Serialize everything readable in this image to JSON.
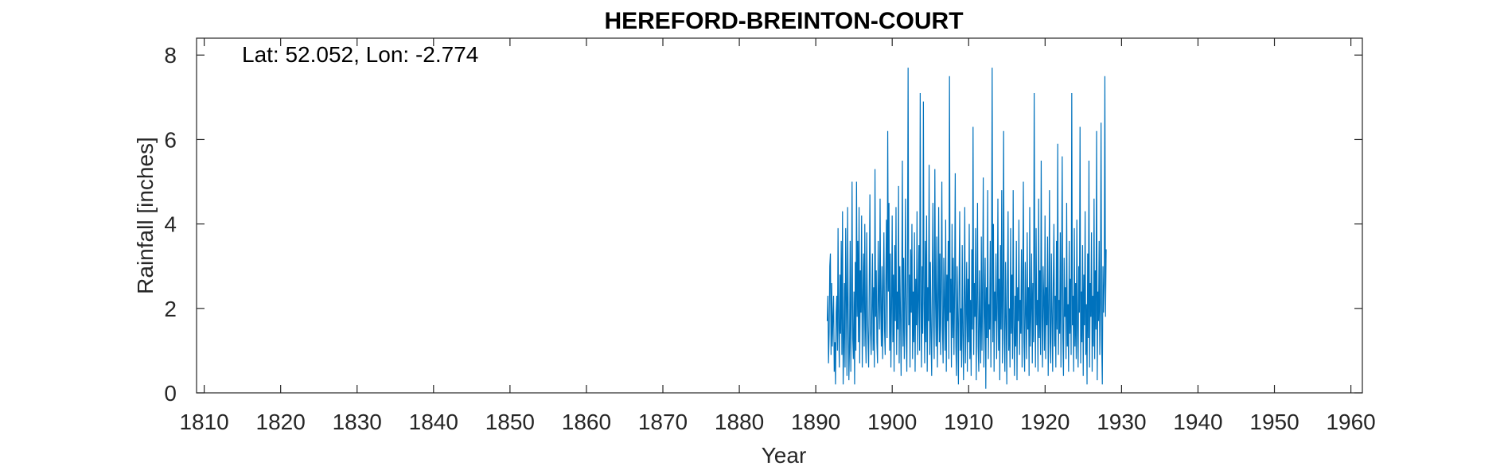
{
  "chart_data": {
    "type": "line",
    "title": "HEREFORD-BREINTON-COURT",
    "xlabel": "Year",
    "ylabel": "Rainfall [inches]",
    "annotation": "Lat: 52.052, Lon: -2.774",
    "xlim": [
      1809,
      1961.5
    ],
    "ylim": [
      0,
      8.4
    ],
    "xticks": [
      1810,
      1820,
      1830,
      1840,
      1850,
      1860,
      1870,
      1880,
      1890,
      1900,
      1910,
      1920,
      1930,
      1940,
      1950,
      1960
    ],
    "yticks": [
      0,
      2,
      4,
      6,
      8
    ],
    "grid": false,
    "line_color": "#0072BD",
    "series": [
      {
        "x_start": 1891.5,
        "x_step": 0.0833,
        "values": [
          1.7,
          2.3,
          0.7,
          1.4,
          3.0,
          3.3,
          0.9,
          2.6,
          1.1,
          1.8,
          2.3,
          0.5,
          1.2,
          0.2,
          1.9,
          2.3,
          1.0,
          3.9,
          1.5,
          0.6,
          2.8,
          1.4,
          3.6,
          0.9,
          4.3,
          0.2,
          1.1,
          2.6,
          0.6,
          3.9,
          2.2,
          0.4,
          4.4,
          1.9,
          0.3,
          1.1,
          3.6,
          0.5,
          2.1,
          5.0,
          1.3,
          0.8,
          2.4,
          0.2,
          3.1,
          1.0,
          5.0,
          1.8,
          3.6,
          1.2,
          4.4,
          0.7,
          2.9,
          1.9,
          4.2,
          0.6,
          2.2,
          3.3,
          1.1,
          4.0,
          1.5,
          0.7,
          3.8,
          2.1,
          1.2,
          0.6,
          2.6,
          4.7,
          1.4,
          0.9,
          2.0,
          3.3,
          1.0,
          2.5,
          0.6,
          5.3,
          1.8,
          2.9,
          1.2,
          0.7,
          3.6,
          2.2,
          1.5,
          4.6,
          2.0,
          1.1,
          3.0,
          0.8,
          2.4,
          3.8,
          1.5,
          0.9,
          2.7,
          4.1,
          1.3,
          6.2,
          2.4,
          4.5,
          1.0,
          3.3,
          0.6,
          2.0,
          4.2,
          1.2,
          2.8,
          0.5,
          3.5,
          1.7,
          4.4,
          0.9,
          2.4,
          1.5,
          4.9,
          0.7,
          3.0,
          1.9,
          0.4,
          2.6,
          5.5,
          1.1,
          3.2,
          0.8,
          2.2,
          4.6,
          1.4,
          0.5,
          2.9,
          7.7,
          1.6,
          2.8,
          0.6,
          3.4,
          1.9,
          4.0,
          0.8,
          2.4,
          1.2,
          3.8,
          0.5,
          2.7,
          1.6,
          4.3,
          0.9,
          2.2,
          3.5,
          1.0,
          7.1,
          2.3,
          0.6,
          3.0,
          1.4,
          6.9,
          2.1,
          0.7,
          3.6,
          1.2,
          4.2,
          0.5,
          2.5,
          1.7,
          5.4,
          0.9,
          3.1,
          1.3,
          0.4,
          2.8,
          4.5,
          1.6,
          0.8,
          5.3,
          2.2,
          1.1,
          3.7,
          0.6,
          2.0,
          4.4,
          1.2,
          3.3,
          0.9,
          2.6,
          5.0,
          1.5,
          0.7,
          3.2,
          2.1,
          1.0,
          4.1,
          0.5,
          2.8,
          1.7,
          3.6,
          0.8,
          7.5,
          1.9,
          2.7,
          0.6,
          4.0,
          1.3,
          3.2,
          0.9,
          2.4,
          5.2,
          1.1,
          0.4,
          3.0,
          1.8,
          0.2,
          2.6,
          4.3,
          1.0,
          2.0,
          0.6,
          3.5,
          1.4,
          0.3,
          2.3,
          4.4,
          0.7,
          1.9,
          3.1,
          0.5,
          2.7,
          1.2,
          4.0,
          0.8,
          2.2,
          0.4,
          3.4,
          1.5,
          6.3,
          0.9,
          2.6,
          1.8,
          3.9,
          0.3,
          2.1,
          4.5,
          1.1,
          0.5,
          2.9,
          1.6,
          0.7,
          3.7,
          1.0,
          2.4,
          5.1,
          0.6,
          1.9,
          3.2,
          0.1,
          2.5,
          1.3,
          4.8,
          0.8,
          2.1,
          1.5,
          3.6,
          0.6,
          2.9,
          7.7,
          1.2,
          4.0,
          0.5,
          2.4,
          1.7,
          3.3,
          0.8,
          2.0,
          4.6,
          1.0,
          2.7,
          0.3,
          3.5,
          1.5,
          4.8,
          0.7,
          2.2,
          6.2,
          1.3,
          0.5,
          3.1,
          1.8,
          0.2,
          2.6,
          4.3,
          1.0,
          2.0,
          0.6,
          3.9,
          1.4,
          2.8,
          0.8,
          4.8,
          1.6,
          0.4,
          2.3,
          1.1,
          3.6,
          0.3,
          2.5,
          1.7,
          4.1,
          0.9,
          2.2,
          1.4,
          3.4,
          0.6,
          2.7,
          5.0,
          1.2,
          0.5,
          3.1,
          1.9,
          0.8,
          3.8,
          1.5,
          2.5,
          0.4,
          4.4,
          1.1,
          2.0,
          3.3,
          0.7,
          2.6,
          1.2,
          7.1,
          2.8,
          0.6,
          3.9,
          1.6,
          2.2,
          0.5,
          4.6,
          1.3,
          2.9,
          0.9,
          5.5,
          1.8,
          0.6,
          3.0,
          2.2,
          1.0,
          4.2,
          0.8,
          2.5,
          1.6,
          3.7,
          0.4,
          2.0,
          4.8,
          1.2,
          0.7,
          3.3,
          1.9,
          0.5,
          2.6,
          4.0,
          1.1,
          2.3,
          0.6,
          3.6,
          1.5,
          5.9,
          0.9,
          2.2,
          1.4,
          3.8,
          0.6,
          2.8,
          5.6,
          1.3,
          0.4,
          3.2,
          1.8,
          2.5,
          0.8,
          4.5,
          1.1,
          2.1,
          0.5,
          3.6,
          1.4,
          2.7,
          0.9,
          7.1,
          1.6,
          2.3,
          0.5,
          3.9,
          1.1,
          2.6,
          0.8,
          4.1,
          1.5,
          0.6,
          3.0,
          1.9,
          6.3,
          0.7,
          2.4,
          1.2,
          3.5,
          0.4,
          2.8,
          1.6,
          4.3,
          0.9,
          2.1,
          0.2,
          3.3,
          1.3,
          5.5,
          0.6,
          2.6,
          1.8,
          3.8,
          0.5,
          2.3,
          1.1,
          4.6,
          0.8,
          2.9,
          1.5,
          6.2,
          0.3,
          2.4,
          1.7,
          3.6,
          0.9,
          2.1,
          6.4,
          1.2,
          0.2,
          3.0,
          1.9,
          2.6,
          7.5,
          1.8,
          3.4
        ]
      }
    ]
  }
}
